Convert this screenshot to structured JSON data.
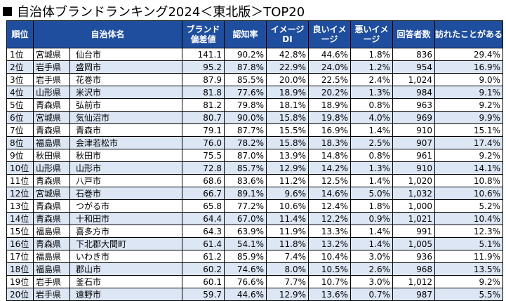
{
  "title": "自治体ブランドランキング2024＜東北版＞TOP20",
  "headers": {
    "rank": "順位",
    "name": "自治体名",
    "brand": "ブランド偏差値",
    "awareness": "認知率",
    "image_di": "イメージDI",
    "good": "良いイメージ",
    "bad": "悪いイメージ",
    "respondents": "回答者数",
    "visited": "訪れたことがある"
  },
  "rows": [
    {
      "rank": "1位",
      "pref": "宮城県",
      "city": "仙台市",
      "brand": "141.1",
      "awareness": "90.2%",
      "di": "42.8%",
      "good": "44.6%",
      "bad": "1.8%",
      "n": "836",
      "visited": "29.4%"
    },
    {
      "rank": "2位",
      "pref": "岩手県",
      "city": "盛岡市",
      "brand": "95.2",
      "awareness": "87.8%",
      "di": "22.9%",
      "good": "24.0%",
      "bad": "1.2%",
      "n": "954",
      "visited": "16.9%"
    },
    {
      "rank": "3位",
      "pref": "岩手県",
      "city": "花巻市",
      "brand": "87.9",
      "awareness": "85.5%",
      "di": "20.0%",
      "good": "22.5%",
      "bad": "2.4%",
      "n": "1,024",
      "visited": "9.0%"
    },
    {
      "rank": "4位",
      "pref": "山形県",
      "city": "米沢市",
      "brand": "81.8",
      "awareness": "77.6%",
      "di": "18.9%",
      "good": "20.2%",
      "bad": "1.3%",
      "n": "984",
      "visited": "9.1%"
    },
    {
      "rank": "5位",
      "pref": "青森県",
      "city": "弘前市",
      "brand": "81.2",
      "awareness": "79.8%",
      "di": "18.1%",
      "good": "18.9%",
      "bad": "0.8%",
      "n": "963",
      "visited": "9.2%"
    },
    {
      "rank": "6位",
      "pref": "宮城県",
      "city": "気仙沼市",
      "brand": "80.7",
      "awareness": "90.0%",
      "di": "15.8%",
      "good": "19.8%",
      "bad": "4.0%",
      "n": "969",
      "visited": "9.9%"
    },
    {
      "rank": "7位",
      "pref": "青森県",
      "city": "青森市",
      "brand": "79.1",
      "awareness": "87.7%",
      "di": "15.5%",
      "good": "16.9%",
      "bad": "1.4%",
      "n": "910",
      "visited": "15.1%"
    },
    {
      "rank": "8位",
      "pref": "福島県",
      "city": "会津若松市",
      "brand": "76.0",
      "awareness": "78.2%",
      "di": "15.8%",
      "good": "18.3%",
      "bad": "2.5%",
      "n": "907",
      "visited": "17.4%"
    },
    {
      "rank": "9位",
      "pref": "秋田県",
      "city": "秋田市",
      "brand": "75.5",
      "awareness": "87.0%",
      "di": "13.9%",
      "good": "14.8%",
      "bad": "0.8%",
      "n": "961",
      "visited": "9.2%"
    },
    {
      "rank": "10位",
      "pref": "山形県",
      "city": "山形市",
      "brand": "72.8",
      "awareness": "85.7%",
      "di": "12.9%",
      "good": "14.2%",
      "bad": "1.3%",
      "n": "910",
      "visited": "14.1%"
    },
    {
      "rank": "11位",
      "pref": "青森県",
      "city": "八戸市",
      "brand": "68.6",
      "awareness": "83.6%",
      "di": "11.2%",
      "good": "12.5%",
      "bad": "1.4%",
      "n": "1,020",
      "visited": "10.8%"
    },
    {
      "rank": "12位",
      "pref": "宮城県",
      "city": "石巻市",
      "brand": "66.7",
      "awareness": "89.1%",
      "di": "9.6%",
      "good": "14.6%",
      "bad": "5.0%",
      "n": "1,032",
      "visited": "10.6%"
    },
    {
      "rank": "13位",
      "pref": "青森県",
      "city": "つがる市",
      "brand": "65.8",
      "awareness": "77.2%",
      "di": "10.6%",
      "good": "12.4%",
      "bad": "1.8%",
      "n": "1,000",
      "visited": "5.2%"
    },
    {
      "rank": "14位",
      "pref": "青森県",
      "city": "十和田市",
      "brand": "64.4",
      "awareness": "67.0%",
      "di": "11.4%",
      "good": "12.2%",
      "bad": "0.9%",
      "n": "1,021",
      "visited": "10.4%"
    },
    {
      "rank": "15位",
      "pref": "福島県",
      "city": "喜多方市",
      "brand": "64.3",
      "awareness": "63.9%",
      "di": "11.9%",
      "good": "13.3%",
      "bad": "1.4%",
      "n": "991",
      "visited": "12.3%"
    },
    {
      "rank": "16位",
      "pref": "青森県",
      "city": "下北郡大間町",
      "brand": "61.4",
      "awareness": "54.1%",
      "di": "11.8%",
      "good": "13.2%",
      "bad": "1.4%",
      "n": "1,005",
      "visited": "5.1%"
    },
    {
      "rank": "17位",
      "pref": "福島県",
      "city": "いわき市",
      "brand": "61.2",
      "awareness": "85.9%",
      "di": "7.4%",
      "good": "10.4%",
      "bad": "3.0%",
      "n": "936",
      "visited": "11.9%"
    },
    {
      "rank": "18位",
      "pref": "福島県",
      "city": "郡山市",
      "brand": "60.2",
      "awareness": "74.6%",
      "di": "8.0%",
      "good": "10.5%",
      "bad": "2.6%",
      "n": "968",
      "visited": "13.5%"
    },
    {
      "rank": "19位",
      "pref": "岩手県",
      "city": "釜石市",
      "brand": "60.1",
      "awareness": "76.6%",
      "di": "7.7%",
      "good": "10.7%",
      "bad": "3.0%",
      "n": "1,012",
      "visited": "9.2%"
    },
    {
      "rank": "20位",
      "pref": "岩手県",
      "city": "遠野市",
      "brand": "59.7",
      "awareness": "44.6%",
      "di": "12.9%",
      "good": "13.6%",
      "bad": "0.7%",
      "n": "987",
      "visited": "5.5%"
    }
  ]
}
